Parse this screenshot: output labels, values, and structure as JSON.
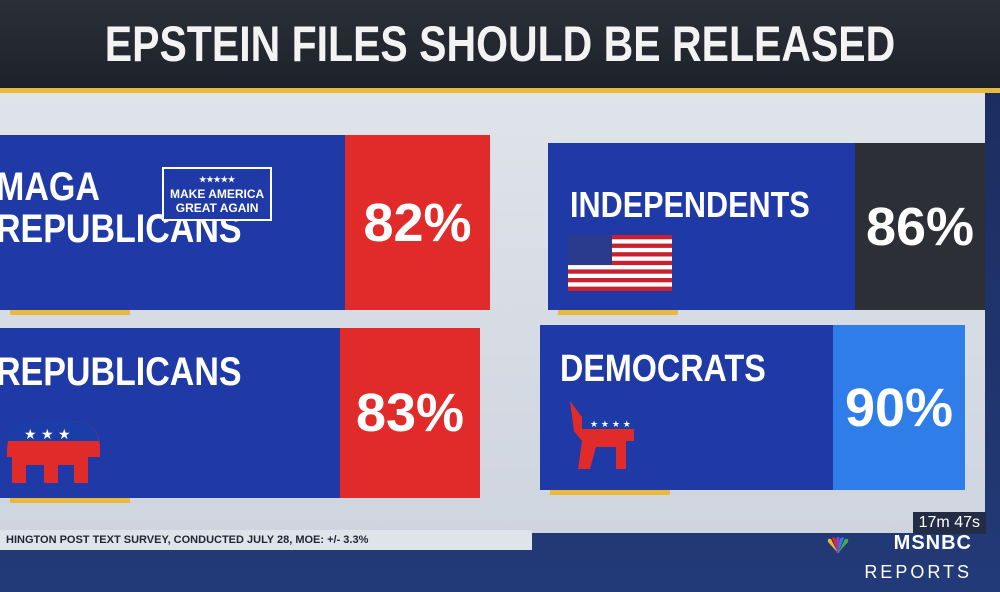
{
  "title": "EPSTEIN FILES SHOULD BE RELEASED",
  "footnote": "HINGTON POST TEXT SURVEY, CONDUCTED JULY 28, MOE: +/- 3.3%",
  "badge": {
    "line1": "MAKE AMERICA",
    "line2": "GREAT AGAIN",
    "stars": "★★★★★"
  },
  "broadcast": {
    "timer": "17m 47s",
    "network": "MSNBC",
    "show": "REPORTS"
  },
  "colors": {
    "red": "#e12a2a",
    "dark": "#2c2f35",
    "lightblue": "#2f7de8",
    "navy": "#1f3aa6"
  },
  "chart_data": {
    "type": "bar",
    "title": "EPSTEIN FILES SHOULD BE RELEASED",
    "categories": [
      "MAGA REPUBLICANS",
      "REPUBLICANS",
      "INDEPENDENTS",
      "DEMOCRATS"
    ],
    "values": [
      82,
      83,
      86,
      90
    ],
    "labels": [
      "82%",
      "83%",
      "86%",
      "90%"
    ],
    "unit": "%"
  },
  "cards": [
    {
      "line1": "MAGA",
      "line2": "REPUBLICANS",
      "value": "82%",
      "color": "#e12a2a"
    },
    {
      "line1": "REPUBLICANS",
      "line2": "",
      "value": "83%",
      "color": "#e12a2a"
    },
    {
      "line1": "INDEPENDENTS",
      "line2": "",
      "value": "86%",
      "color": "#2c2f35"
    },
    {
      "line1": "DEMOCRATS",
      "line2": "",
      "value": "90%",
      "color": "#2f7de8"
    }
  ]
}
